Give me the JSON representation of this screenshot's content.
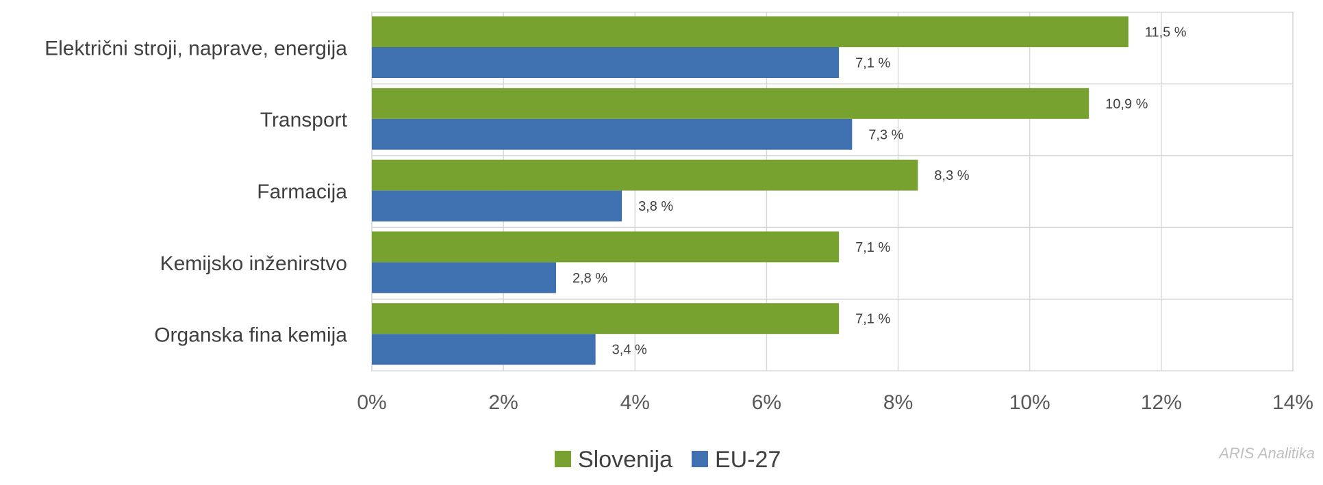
{
  "chart_data": {
    "type": "bar",
    "orientation": "horizontal",
    "categories": [
      "Električni stroji, naprave, energija",
      "Transport",
      "Farmacija",
      "Kemijsko inženirstvo",
      "Organska fina kemija"
    ],
    "series": [
      {
        "name": "Slovenija",
        "color": "#77a22f",
        "values": [
          11.5,
          10.9,
          8.3,
          7.1,
          7.1
        ],
        "labels": [
          "11,5 %",
          "10,9 %",
          "8,3 %",
          "7,1 %",
          "7,1 %"
        ]
      },
      {
        "name": "EU-27",
        "color": "#3f71b0",
        "values": [
          7.1,
          7.3,
          3.8,
          2.8,
          3.4
        ],
        "labels": [
          "7,1 %",
          "7,3 %",
          "3,8 %",
          "2,8 %",
          "3,4 %"
        ]
      }
    ],
    "xlim": [
      0,
      14
    ],
    "x_ticks": [
      "0%",
      "2%",
      "4%",
      "6%",
      "8%",
      "10%",
      "12%",
      "14%"
    ],
    "grid": true,
    "legend_position": "bottom",
    "title": "",
    "xlabel": "",
    "ylabel": ""
  },
  "watermark": "ARIS Analitika"
}
